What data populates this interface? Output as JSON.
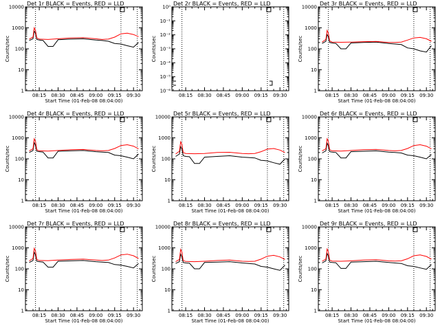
{
  "chart_data": [
    {
      "type": "line",
      "title": "Det 1r BLACK = Events, RED = LLD",
      "ylabel": "Counts/sec",
      "xlabel": "Start Time (01-Feb-08 08:04:00)",
      "yscale": "log",
      "ylim": [
        1,
        10000
      ],
      "yticks": [
        "1",
        "10",
        "100",
        "1000",
        "10000"
      ],
      "xticks": [
        "08:15",
        "08:30",
        "08:45",
        "09:00",
        "09:15",
        "09:30"
      ],
      "xlim": [
        "08:04",
        "09:37"
      ],
      "vlines": [
        "08:12",
        "09:20",
        "09:33"
      ],
      "series": [
        {
          "name": "Events",
          "color": "#000000",
          "x": [
            "08:07",
            "08:10",
            "08:11",
            "08:12",
            "08:13",
            "08:15",
            "08:18",
            "08:22",
            "08:26",
            "08:30",
            "08:40",
            "08:50",
            "09:00",
            "09:05",
            "09:10",
            "09:15",
            "09:20",
            "09:25",
            "09:30",
            "09:34"
          ],
          "values": [
            250,
            300,
            700,
            560,
            280,
            260,
            250,
            130,
            130,
            270,
            290,
            300,
            260,
            250,
            230,
            180,
            170,
            140,
            120,
            200
          ]
        },
        {
          "name": "LLD",
          "color": "#ff0000",
          "x": [
            "08:07",
            "08:10",
            "08:11",
            "08:12",
            "08:13",
            "08:15",
            "08:22",
            "08:30",
            "08:40",
            "08:50",
            "09:00",
            "09:05",
            "09:10",
            "09:15",
            "09:20",
            "09:25",
            "09:30",
            "09:34"
          ],
          "values": [
            290,
            360,
            1000,
            750,
            330,
            290,
            280,
            300,
            330,
            340,
            300,
            280,
            290,
            360,
            520,
            560,
            480,
            380
          ]
        }
      ]
    },
    {
      "type": "line",
      "title": "Det 2r BLACK = Events, RED = LLD",
      "ylabel": "Counts/sec",
      "xlabel": "",
      "yscale": "log",
      "ylim": [
        1e-06,
        1
      ],
      "yticks": [
        "10⁻⁶",
        "10⁻⁵",
        "10⁻⁴",
        "10⁻³",
        "10⁻²",
        "10⁻¹",
        "10⁰"
      ],
      "xticks": [
        "08:15",
        "08:30",
        "08:45",
        "09:00",
        "09:15",
        "09:30"
      ],
      "xlim": [
        "08:04",
        "09:37"
      ],
      "vlines": [
        "08:12",
        "09:20",
        "09:33"
      ],
      "series": []
    },
    {
      "type": "line",
      "title": "Det 3r BLACK = Events, RED = LLD",
      "ylabel": "Counts/sec",
      "xlabel": "Start Time (01-Feb-08 08:04:00)",
      "yscale": "log",
      "ylim": [
        1,
        10000
      ],
      "yticks": [
        "1",
        "10",
        "100",
        "1000",
        "10000"
      ],
      "xticks": [
        "08:15",
        "08:30",
        "08:45",
        "09:00",
        "09:15",
        "09:30"
      ],
      "xlim": [
        "08:04",
        "09:37"
      ],
      "vlines": [
        "08:12",
        "09:20",
        "09:33"
      ],
      "series": [
        {
          "name": "Events",
          "color": "#000000",
          "x": [
            "08:07",
            "08:10",
            "08:11",
            "08:12",
            "08:13",
            "08:15",
            "08:18",
            "08:22",
            "08:26",
            "08:30",
            "08:40",
            "08:50",
            "09:00",
            "09:05",
            "09:10",
            "09:15",
            "09:20",
            "09:25",
            "09:30",
            "09:34"
          ],
          "values": [
            180,
            230,
            480,
            380,
            200,
            190,
            180,
            100,
            100,
            190,
            200,
            210,
            180,
            170,
            160,
            110,
            100,
            80,
            70,
            140
          ]
        },
        {
          "name": "LLD",
          "color": "#ff0000",
          "x": [
            "08:07",
            "08:10",
            "08:11",
            "08:12",
            "08:13",
            "08:15",
            "08:22",
            "08:30",
            "08:40",
            "08:50",
            "09:00",
            "09:05",
            "09:10",
            "09:15",
            "09:20",
            "09:25",
            "09:30",
            "09:34"
          ],
          "values": [
            210,
            280,
            750,
            560,
            240,
            210,
            205,
            210,
            220,
            225,
            200,
            200,
            210,
            260,
            330,
            350,
            300,
            230
          ]
        }
      ]
    },
    {
      "type": "line",
      "title": "Det 4r BLACK = Events, RED = LLD",
      "ylabel": "Counts/sec",
      "xlabel": "Start Time (01-Feb-08 08:04:00)",
      "yscale": "log",
      "ylim": [
        1,
        10000
      ],
      "yticks": [
        "1",
        "10",
        "100",
        "1000",
        "10000"
      ],
      "xticks": [
        "08:15",
        "08:30",
        "08:45",
        "09:00",
        "09:15",
        "09:30"
      ],
      "xlim": [
        "08:04",
        "09:37"
      ],
      "vlines": [
        "08:12",
        "09:20",
        "09:33"
      ],
      "series": [
        {
          "name": "Events",
          "color": "#000000",
          "x": [
            "08:07",
            "08:10",
            "08:11",
            "08:12",
            "08:13",
            "08:15",
            "08:18",
            "08:22",
            "08:26",
            "08:30",
            "08:40",
            "08:50",
            "09:00",
            "09:05",
            "09:10",
            "09:15",
            "09:20",
            "09:25",
            "09:30",
            "09:34"
          ],
          "values": [
            200,
            250,
            600,
            450,
            230,
            220,
            210,
            110,
            110,
            230,
            240,
            250,
            220,
            210,
            200,
            150,
            140,
            120,
            100,
            170
          ]
        },
        {
          "name": "LLD",
          "color": "#ff0000",
          "x": [
            "08:07",
            "08:10",
            "08:11",
            "08:12",
            "08:13",
            "08:15",
            "08:22",
            "08:30",
            "08:40",
            "08:50",
            "09:00",
            "09:05",
            "09:10",
            "09:15",
            "09:20",
            "09:25",
            "09:30",
            "09:34"
          ],
          "values": [
            240,
            300,
            900,
            680,
            270,
            240,
            235,
            250,
            270,
            280,
            250,
            240,
            250,
            310,
            430,
            470,
            400,
            300
          ]
        }
      ]
    },
    {
      "type": "line",
      "title": "Det 5r BLACK = Events, RED = LLD",
      "ylabel": "Counts/sec",
      "xlabel": "Start Time (01-Feb-08 08:04:00)",
      "yscale": "log",
      "ylim": [
        1,
        10000
      ],
      "yticks": [
        "1",
        "10",
        "100",
        "1000",
        "10000"
      ],
      "xticks": [
        "08:15",
        "08:30",
        "08:45",
        "09:00",
        "09:15",
        "09:30"
      ],
      "xlim": [
        "08:04",
        "09:37"
      ],
      "vlines": [
        "08:12",
        "09:20",
        "09:33"
      ],
      "series": [
        {
          "name": "Events",
          "color": "#000000",
          "x": [
            "08:07",
            "08:10",
            "08:11",
            "08:12",
            "08:13",
            "08:15",
            "08:18",
            "08:22",
            "08:26",
            "08:30",
            "08:40",
            "08:50",
            "09:00",
            "09:05",
            "09:10",
            "09:15",
            "09:20",
            "09:25",
            "09:30",
            "09:34"
          ],
          "values": [
            130,
            170,
            380,
            300,
            140,
            130,
            125,
            60,
            60,
            120,
            130,
            140,
            120,
            115,
            110,
            85,
            80,
            65,
            55,
            100
          ]
        },
        {
          "name": "LLD",
          "color": "#ff0000",
          "x": [
            "08:07",
            "08:10",
            "08:11",
            "08:12",
            "08:13",
            "08:15",
            "08:22",
            "08:30",
            "08:40",
            "08:50",
            "09:00",
            "09:05",
            "09:10",
            "09:15",
            "09:20",
            "09:25",
            "09:30",
            "09:34"
          ],
          "values": [
            170,
            230,
            650,
            480,
            200,
            180,
            175,
            180,
            200,
            205,
            180,
            175,
            180,
            220,
            290,
            310,
            260,
            200
          ]
        }
      ]
    },
    {
      "type": "line",
      "title": "Det 6r BLACK = Events, RED = LLD",
      "ylabel": "Counts/sec",
      "xlabel": "Start Time (01-Feb-08 08:04:00)",
      "yscale": "log",
      "ylim": [
        1,
        10000
      ],
      "yticks": [
        "1",
        "10",
        "100",
        "1000",
        "10000"
      ],
      "xticks": [
        "08:15",
        "08:30",
        "08:45",
        "09:00",
        "09:15",
        "09:30"
      ],
      "xlim": [
        "08:04",
        "09:37"
      ],
      "vlines": [
        "08:12",
        "09:20",
        "09:33"
      ],
      "series": [
        {
          "name": "Events",
          "color": "#000000",
          "x": [
            "08:07",
            "08:10",
            "08:11",
            "08:12",
            "08:13",
            "08:15",
            "08:18",
            "08:22",
            "08:26",
            "08:30",
            "08:40",
            "08:50",
            "09:00",
            "09:05",
            "09:10",
            "09:15",
            "09:20",
            "09:25",
            "09:30",
            "09:34"
          ],
          "values": [
            190,
            240,
            560,
            420,
            220,
            210,
            200,
            110,
            110,
            220,
            230,
            240,
            210,
            200,
            190,
            150,
            140,
            120,
            100,
            160
          ]
        },
        {
          "name": "LLD",
          "color": "#ff0000",
          "x": [
            "08:07",
            "08:10",
            "08:11",
            "08:12",
            "08:13",
            "08:15",
            "08:22",
            "08:30",
            "08:40",
            "08:50",
            "09:00",
            "09:05",
            "09:10",
            "09:15",
            "09:20",
            "09:25",
            "09:30",
            "09:34"
          ],
          "values": [
            240,
            300,
            900,
            680,
            270,
            240,
            235,
            250,
            270,
            280,
            250,
            240,
            250,
            310,
            430,
            470,
            400,
            300
          ]
        }
      ]
    },
    {
      "type": "line",
      "title": "Det 7r BLACK = Events, RED = LLD",
      "ylabel": "Counts/sec",
      "xlabel": "Start Time (01-Feb-08 08:04:00)",
      "yscale": "log",
      "ylim": [
        1,
        10000
      ],
      "yticks": [
        "1",
        "10",
        "100",
        "1000",
        "10000"
      ],
      "xticks": [
        "08:15",
        "08:30",
        "08:45",
        "09:00",
        "09:15",
        "09:30"
      ],
      "xlim": [
        "08:04",
        "09:37"
      ],
      "vlines": [
        "08:12",
        "09:20",
        "09:33"
      ],
      "series": [
        {
          "name": "Events",
          "color": "#000000",
          "x": [
            "08:07",
            "08:10",
            "08:11",
            "08:12",
            "08:13",
            "08:15",
            "08:18",
            "08:22",
            "08:26",
            "08:30",
            "08:40",
            "08:50",
            "09:00",
            "09:05",
            "09:10",
            "09:15",
            "09:20",
            "09:25",
            "09:30",
            "09:34"
          ],
          "values": [
            200,
            250,
            620,
            470,
            230,
            220,
            210,
            120,
            120,
            230,
            240,
            250,
            220,
            210,
            200,
            160,
            150,
            130,
            110,
            180
          ]
        },
        {
          "name": "LLD",
          "color": "#ff0000",
          "x": [
            "08:07",
            "08:10",
            "08:11",
            "08:12",
            "08:13",
            "08:15",
            "08:22",
            "08:30",
            "08:40",
            "08:50",
            "09:00",
            "09:05",
            "09:10",
            "09:15",
            "09:20",
            "09:25",
            "09:30",
            "09:34"
          ],
          "values": [
            240,
            310,
            950,
            700,
            280,
            250,
            245,
            260,
            280,
            290,
            260,
            250,
            260,
            330,
            460,
            500,
            420,
            310
          ]
        }
      ]
    },
    {
      "type": "line",
      "title": "Det 8r BLACK = Events, RED = LLD",
      "ylabel": "Counts/sec",
      "xlabel": "Start Time (01-Feb-08 08:04:00)",
      "yscale": "log",
      "ylim": [
        1,
        10000
      ],
      "yticks": [
        "1",
        "10",
        "100",
        "1000",
        "10000"
      ],
      "xticks": [
        "08:15",
        "08:30",
        "08:45",
        "09:00",
        "09:15",
        "09:30"
      ],
      "xlim": [
        "08:04",
        "09:37"
      ],
      "vlines": [
        "08:12",
        "09:20",
        "09:33"
      ],
      "series": [
        {
          "name": "Events",
          "color": "#000000",
          "x": [
            "08:07",
            "08:10",
            "08:11",
            "08:12",
            "08:13",
            "08:15",
            "08:18",
            "08:22",
            "08:26",
            "08:30",
            "08:40",
            "08:50",
            "09:00",
            "09:05",
            "09:10",
            "09:15",
            "09:20",
            "09:25",
            "09:30",
            "09:34"
          ],
          "values": [
            180,
            220,
            500,
            380,
            200,
            190,
            185,
            100,
            100,
            200,
            210,
            220,
            190,
            180,
            170,
            130,
            120,
            100,
            85,
            150
          ]
        },
        {
          "name": "LLD",
          "color": "#ff0000",
          "x": [
            "08:07",
            "08:10",
            "08:11",
            "08:12",
            "08:13",
            "08:15",
            "08:22",
            "08:30",
            "08:40",
            "08:50",
            "09:00",
            "09:05",
            "09:10",
            "09:15",
            "09:20",
            "09:25",
            "09:30",
            "09:34"
          ],
          "values": [
            220,
            280,
            850,
            620,
            250,
            225,
            220,
            230,
            250,
            260,
            230,
            225,
            230,
            290,
            400,
            440,
            370,
            280
          ]
        }
      ]
    },
    {
      "type": "line",
      "title": "Det 9r BLACK = Events, RED = LLD",
      "ylabel": "Counts/sec",
      "xlabel": "Start Time (01-Feb-08 08:04:00)",
      "yscale": "log",
      "ylim": [
        1,
        10000
      ],
      "yticks": [
        "1",
        "10",
        "100",
        "1000",
        "10000"
      ],
      "xticks": [
        "08:15",
        "08:30",
        "08:45",
        "09:00",
        "09:15",
        "09:30"
      ],
      "xlim": [
        "08:04",
        "09:37"
      ],
      "vlines": [
        "08:12",
        "09:20",
        "09:33"
      ],
      "series": [
        {
          "name": "Events",
          "color": "#000000",
          "x": [
            "08:07",
            "08:10",
            "08:11",
            "08:12",
            "08:13",
            "08:15",
            "08:18",
            "08:22",
            "08:26",
            "08:30",
            "08:40",
            "08:50",
            "09:00",
            "09:05",
            "09:10",
            "09:15",
            "09:20",
            "09:25",
            "09:30",
            "09:34"
          ],
          "values": [
            190,
            240,
            540,
            410,
            210,
            200,
            195,
            105,
            105,
            210,
            220,
            230,
            200,
            190,
            180,
            140,
            130,
            110,
            95,
            160
          ]
        },
        {
          "name": "LLD",
          "color": "#ff0000",
          "x": [
            "08:07",
            "08:10",
            "08:11",
            "08:12",
            "08:13",
            "08:15",
            "08:22",
            "08:30",
            "08:40",
            "08:50",
            "09:00",
            "09:05",
            "09:10",
            "09:15",
            "09:20",
            "09:25",
            "09:30",
            "09:34"
          ],
          "values": [
            230,
            290,
            880,
            650,
            260,
            235,
            230,
            240,
            260,
            270,
            240,
            235,
            240,
            300,
            420,
            460,
            390,
            290
          ]
        }
      ]
    }
  ]
}
